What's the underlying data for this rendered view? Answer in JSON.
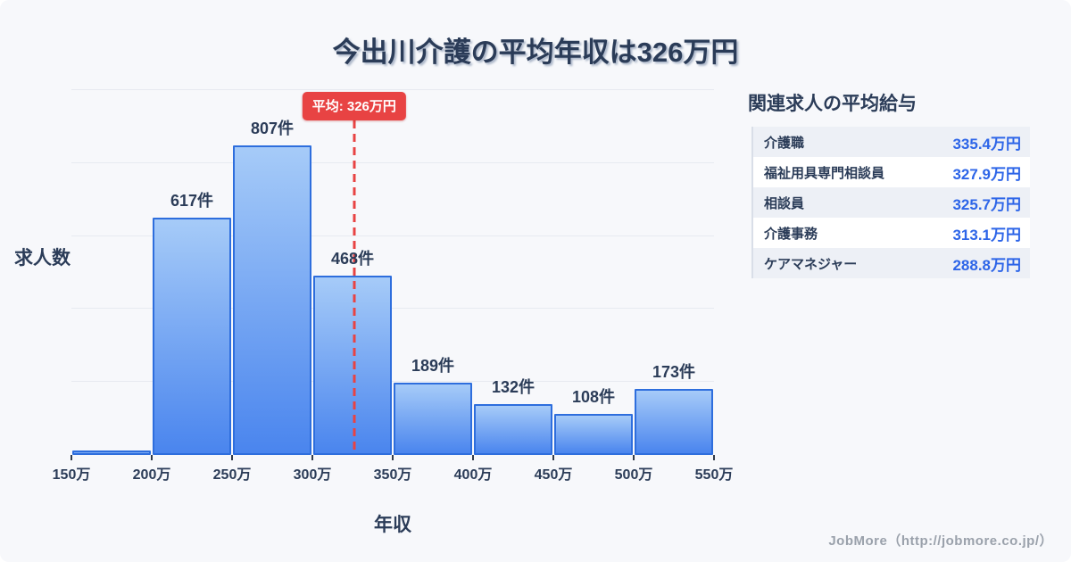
{
  "title": "今出川介護の平均年収は326万円",
  "chart_data": {
    "type": "bar",
    "title": "今出川介護の平均年収は326万円",
    "xlabel": "年収",
    "ylabel": "求人数",
    "bin_edges_man_yen": [
      150,
      200,
      250,
      300,
      350,
      400,
      450,
      500,
      550
    ],
    "x_tick_labels": [
      "150万",
      "200万",
      "250万",
      "300万",
      "350万",
      "400万",
      "450万",
      "500万",
      "550万"
    ],
    "values": [
      10,
      617,
      807,
      468,
      189,
      132,
      108,
      173
    ],
    "bar_labels": [
      "",
      "617件",
      "807件",
      "468件",
      "189件",
      "132件",
      "108件",
      "173件"
    ],
    "ylim": [
      0,
      950
    ],
    "grid": true,
    "gridline_count": 5,
    "legend": "none",
    "average": {
      "value": 326,
      "label": "平均: 326万円"
    }
  },
  "panel": {
    "title": "関連求人の平均給与",
    "rows": [
      {
        "label": "介護職",
        "value": "335.4万円"
      },
      {
        "label": "福祉用具専門相談員",
        "value": "327.9万円"
      },
      {
        "label": "相談員",
        "value": "325.7万円"
      },
      {
        "label": "介護事務",
        "value": "313.1万円"
      },
      {
        "label": "ケアマネジャー",
        "value": "288.8万円"
      }
    ]
  },
  "footer": {
    "credit": "JobMore（http://jobmore.co.jp/）"
  },
  "colors": {
    "page_background": "#f7f8fb",
    "navy_text": "#2b3c58",
    "bar_fill_top": "#a6cbf8",
    "bar_fill_bottom": "#4a85ee",
    "bar_border": "#2e6edd",
    "accent_red": "#e84343",
    "value_blue": "#2d65e8",
    "gridline": "#e7eaf0",
    "alt_row_background": "#edf0f6",
    "footer_gray": "#9aa1ab"
  }
}
